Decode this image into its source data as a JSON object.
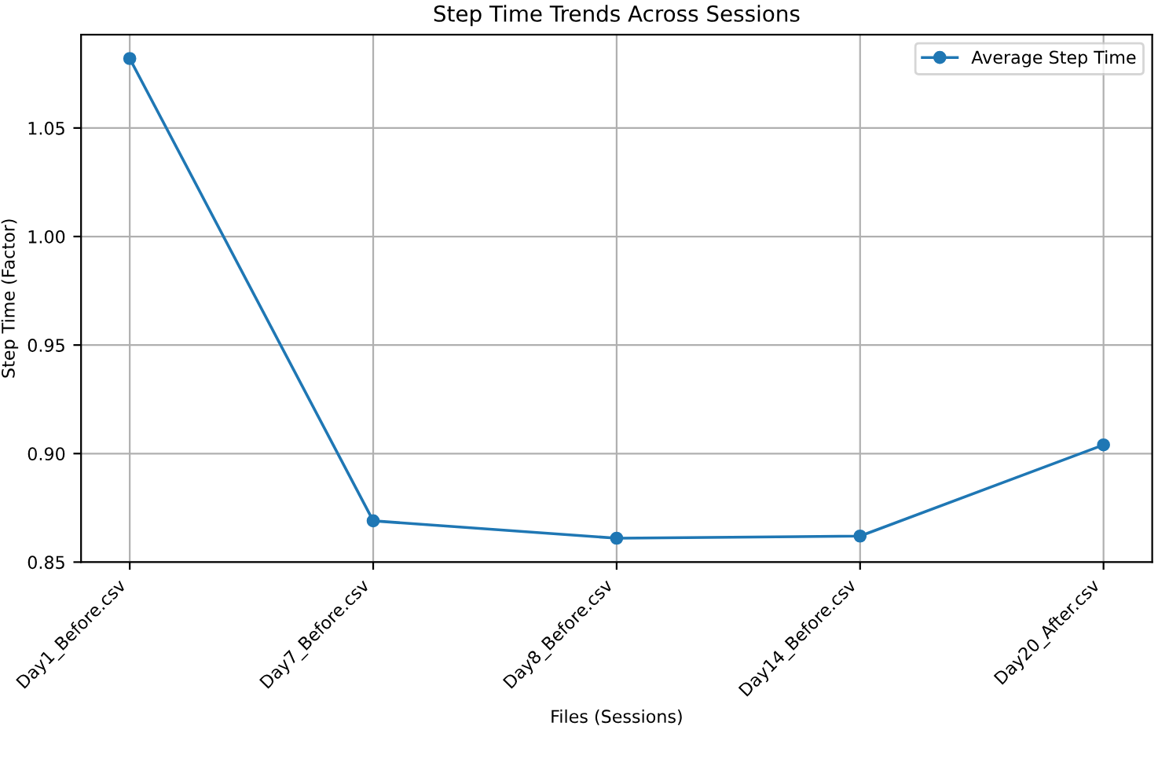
{
  "chart_data": {
    "type": "line",
    "title": "Step Time Trends Across Sessions",
    "xlabel": "Files (Sessions)",
    "ylabel": "Step Time (Factor)",
    "categories": [
      "Day1_Before.csv",
      "Day7_Before.csv",
      "Day8_Before.csv",
      "Day14_Before.csv",
      "Day20_After.csv"
    ],
    "series": [
      {
        "name": "Average Step Time",
        "color": "#1f77b4",
        "values": [
          1.082,
          0.869,
          0.861,
          0.862,
          0.904
        ]
      }
    ],
    "ylim": [
      0.85,
      1.093
    ],
    "yticks": [
      {
        "value": 0.85,
        "label": "0.85"
      },
      {
        "value": 0.9,
        "label": "0.90"
      },
      {
        "value": 0.95,
        "label": "0.95"
      },
      {
        "value": 1.0,
        "label": "1.00"
      },
      {
        "value": 1.05,
        "label": "1.05"
      }
    ],
    "grid": true,
    "legend": "top right",
    "marker": "circle",
    "line_style": "solid"
  }
}
